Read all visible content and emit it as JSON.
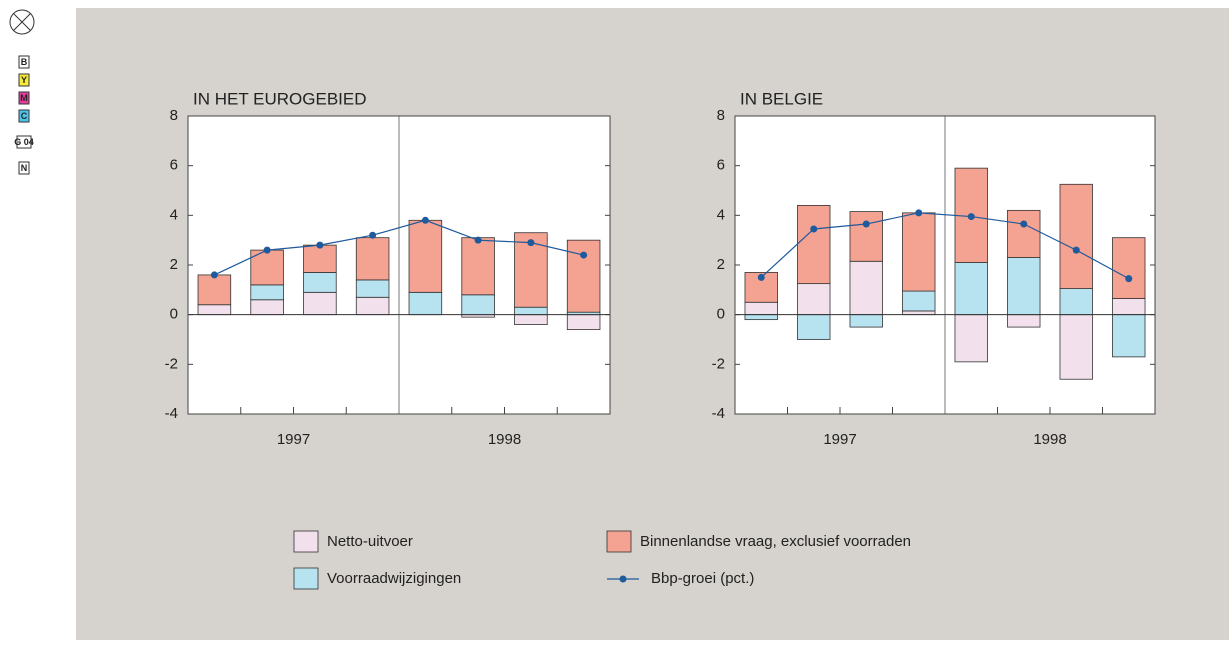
{
  "print_marks": [
    "B",
    "Y",
    "M",
    "C",
    "G 04",
    "N"
  ],
  "chart_data": [
    {
      "type": "bar",
      "stacked": true,
      "title": "IN HET EUROGEBIED",
      "categories": [
        null,
        null,
        null,
        null,
        null,
        null,
        null,
        null
      ],
      "groups": [
        "1997",
        "1998"
      ],
      "ylim": [
        -4,
        8
      ],
      "yticks": [
        -4,
        -2,
        0,
        2,
        4,
        6,
        8
      ],
      "grid": false,
      "series": [
        {
          "name": "Netto-uitvoer",
          "color": "#f2e1ec",
          "values": [
            0.4,
            0.6,
            0.9,
            0.7,
            0,
            -0.1,
            -0.4,
            -0.6
          ]
        },
        {
          "name": "Voorraadwijzigingen",
          "color": "#b7e2f0",
          "values": [
            0,
            0.6,
            0.8,
            0.7,
            0.9,
            0.8,
            0.3,
            0.1
          ]
        },
        {
          "name": "Binnenlandse vraag, exclusief voorraden",
          "color": "#f4a291",
          "values": [
            1.2,
            1.4,
            1.1,
            1.7,
            2.9,
            2.3,
            3.0,
            2.9
          ]
        },
        {
          "name": "Bbp-groei (pct.)",
          "type": "line",
          "color": "#1f5a9c",
          "values": [
            1.6,
            2.6,
            2.8,
            3.2,
            3.8,
            3.0,
            2.9,
            2.4
          ]
        }
      ]
    },
    {
      "type": "bar",
      "stacked": true,
      "title": "IN BELGIE",
      "categories": [
        null,
        null,
        null,
        null,
        null,
        null,
        null,
        null
      ],
      "groups": [
        "1997",
        "1998"
      ],
      "ylim": [
        -4,
        8
      ],
      "yticks": [
        -4,
        -2,
        0,
        2,
        4,
        6,
        8
      ],
      "grid": false,
      "series": [
        {
          "name": "Netto-uitvoer",
          "color": "#f2e1ec",
          "values": [
            0.5,
            1.25,
            2.15,
            0.15,
            -1.9,
            -0.5,
            -2.6,
            0.65
          ]
        },
        {
          "name": "Voorraadwijzigingen",
          "color": "#b7e2f0",
          "values": [
            -0.2,
            -1.0,
            -0.5,
            0.8,
            2.1,
            2.3,
            1.05,
            -1.7
          ]
        },
        {
          "name": "Binnenlandse vraag, exclusief voorraden",
          "color": "#f4a291",
          "values": [
            1.2,
            3.15,
            2.0,
            3.15,
            3.8,
            1.9,
            4.2,
            2.45
          ]
        },
        {
          "name": "Bbp-groei (pct.)",
          "type": "line",
          "color": "#1f5a9c",
          "values": [
            1.5,
            3.45,
            3.65,
            4.1,
            3.95,
            3.65,
            2.6,
            1.45
          ]
        }
      ]
    }
  ]
}
